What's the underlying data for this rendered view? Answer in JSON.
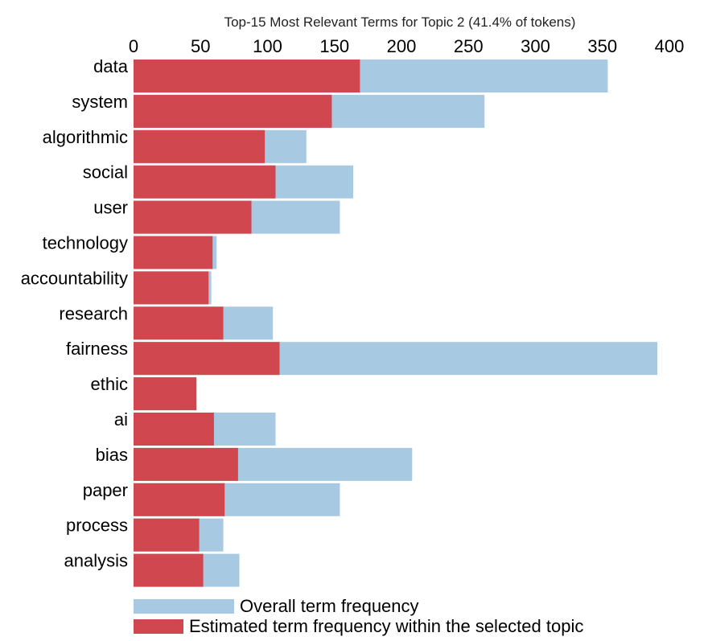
{
  "chart_data": {
    "type": "bar",
    "orientation": "horizontal",
    "title": "Top-15 Most Relevant Terms for Topic 2 (41.4% of tokens)",
    "xlabel": "",
    "ylabel": "",
    "xlim": [
      0,
      400
    ],
    "x_ticks": [
      0,
      50,
      100,
      150,
      200,
      250,
      300,
      350,
      400
    ],
    "x_axis_position": "top",
    "grid": false,
    "legend_position": "bottom",
    "categories": [
      "data",
      "system",
      "algorithmic",
      "social",
      "user",
      "technology",
      "accountability",
      "research",
      "fairness",
      "ethic",
      "ai",
      "bias",
      "paper",
      "process",
      "analysis"
    ],
    "series": [
      {
        "name": "Overall term frequency",
        "color": "#a7c9e1",
        "values": [
          354,
          262,
          129,
          164,
          154,
          62,
          58,
          104,
          391,
          34,
          106,
          208,
          154,
          67,
          79
        ]
      },
      {
        "name": "Estimated term frequency within the selected topic",
        "color": "#d0474f",
        "values": [
          169,
          148,
          98,
          106,
          88,
          59,
          56,
          67,
          109,
          47,
          60,
          78,
          68,
          49,
          52
        ]
      }
    ]
  }
}
